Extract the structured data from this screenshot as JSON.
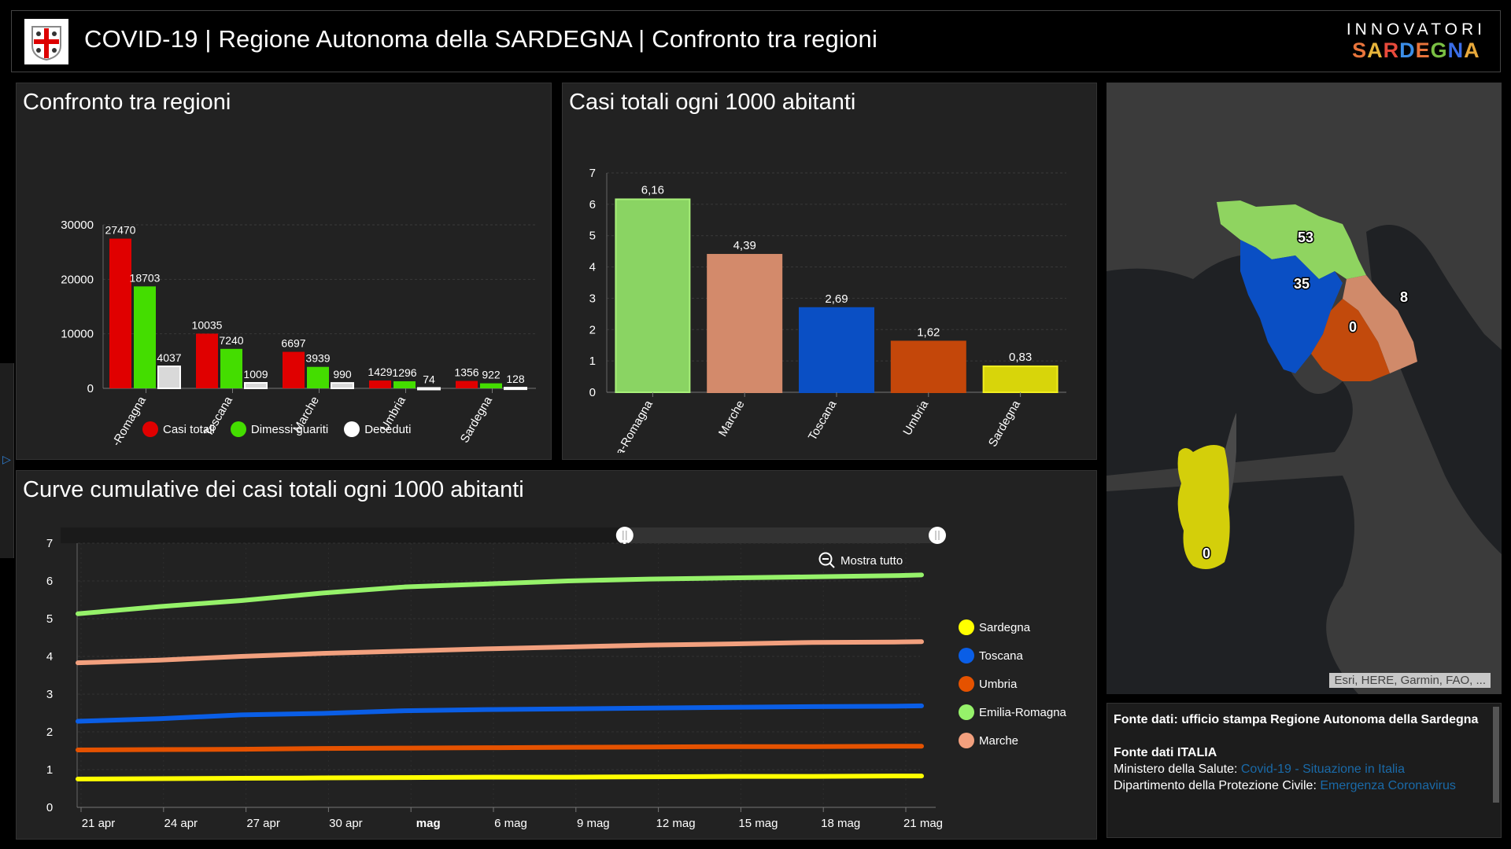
{
  "header": {
    "title": "COVID-19 | Regione Autonoma della SARDEGNA | Confronto tra regioni",
    "brand_top": "INNOVATORI",
    "brand_bottom_letters": [
      "S",
      "A",
      "R",
      "D",
      "E",
      "G",
      "N",
      "A"
    ],
    "brand_bottom_colors": [
      "#e8743b",
      "#e8b53b",
      "#e84a3b",
      "#3b8ee8",
      "#e8743b",
      "#7ac043",
      "#3b6ee8",
      "#e8a93b"
    ]
  },
  "panel_bars": {
    "title": "Confronto tra regioni",
    "legend": [
      {
        "label": "Casi totali",
        "color": "#e00000"
      },
      {
        "label": "Dimessi guariti",
        "color": "#44dd00"
      },
      {
        "label": "Deceduti",
        "color": "#ffffff"
      }
    ]
  },
  "panel_rate": {
    "title": "Casi totali ogni 1000 abitanti"
  },
  "panel_lines": {
    "title": "Curve cumulative dei casi totali ogni 1000 abitanti",
    "reset_zoom_label": "Mostra tutto",
    "legend": [
      {
        "label": "Sardegna",
        "color": "#ffff00"
      },
      {
        "label": "Toscana",
        "color": "#0a5ee6"
      },
      {
        "label": "Umbria",
        "color": "#e55200"
      },
      {
        "label": "Emilia-Romagna",
        "color": "#96f26a"
      },
      {
        "label": "Marche",
        "color": "#f2a07e"
      }
    ]
  },
  "map": {
    "attribution": "Esri, HERE, Garmin, FAO, ...",
    "labels": [
      {
        "region": "Emilia-Romagna",
        "value": "53",
        "color": "#8fd460"
      },
      {
        "region": "Toscana",
        "value": "35",
        "color": "#0a4fc4"
      },
      {
        "region": "Marche",
        "value": "8",
        "color": "#d08a6a"
      },
      {
        "region": "Umbria",
        "value": "0",
        "color": "#c24a0c"
      },
      {
        "region": "Sardegna",
        "value": "0",
        "color": "#d4cf0a"
      }
    ]
  },
  "sources": {
    "line1_bold": "Fonte dati: ufficio stampa Regione Autonoma della Sardegna",
    "line2_bold": "Fonte dati ITALIA",
    "ministero_label": "Ministero della Salute: ",
    "ministero_link": "Covid-19 - Situazione in Italia",
    "protezione_label": "Dipartimento della Protezione Civile: ",
    "protezione_link": "Emergenza Coronavirus"
  },
  "chart_data": [
    {
      "type": "bar",
      "title": "Confronto tra regioni",
      "categories": [
        "Emilia-Romagna",
        "Toscana",
        "Marche",
        "Umbria",
        "Sardegna"
      ],
      "series": [
        {
          "name": "Casi totali",
          "color": "#e00000",
          "values": [
            27470,
            10035,
            6697,
            1429,
            1356
          ]
        },
        {
          "name": "Dimessi guariti",
          "color": "#44dd00",
          "values": [
            18703,
            7240,
            3939,
            1296,
            922
          ]
        },
        {
          "name": "Deceduti",
          "color": "#d9d9d9",
          "values": [
            4037,
            1009,
            990,
            74,
            128
          ]
        }
      ],
      "yticks": [
        0,
        10000,
        20000,
        30000
      ],
      "ylim": [
        0,
        30000
      ],
      "legend": "bottom",
      "grid": true
    },
    {
      "type": "bar",
      "title": "Casi totali ogni 1000 abitanti",
      "categories": [
        "Emilia-Romagna",
        "Marche",
        "Toscana",
        "Umbria",
        "Sardegna"
      ],
      "values": [
        6.16,
        4.39,
        2.69,
        1.62,
        0.83
      ],
      "value_labels": [
        "6,16",
        "4,39",
        "2,69",
        "1,62",
        "0,83"
      ],
      "colors": [
        "#8ad463",
        "#d38a6b",
        "#0a4fc4",
        "#c4470a",
        "#d8d50a"
      ],
      "yticks": [
        0,
        1,
        2,
        3,
        4,
        5,
        6,
        7
      ],
      "ylim": [
        0,
        7
      ],
      "grid": true
    },
    {
      "type": "line",
      "title": "Curve cumulative dei casi totali ogni 1000 abitanti",
      "x_ticks": [
        "21 apr",
        "24 apr",
        "27 apr",
        "30 apr",
        "mag",
        "6 mag",
        "9 mag",
        "12 mag",
        "15 mag",
        "18 mag",
        "21 mag"
      ],
      "x_tick_bold": [
        false,
        false,
        false,
        false,
        true,
        false,
        false,
        false,
        false,
        false,
        false
      ],
      "x_range_days": [
        0,
        31
      ],
      "yticks": [
        0,
        1,
        2,
        3,
        4,
        5,
        6,
        7
      ],
      "ylim": [
        0,
        7
      ],
      "legend": "right",
      "grid": true,
      "series": [
        {
          "name": "Emilia-Romagna",
          "color": "#96f26a",
          "x": [
            0,
            3,
            6,
            9,
            12,
            15,
            18,
            21,
            24,
            27,
            30,
            31
          ],
          "y": [
            5.13,
            5.32,
            5.48,
            5.68,
            5.84,
            5.92,
            6.0,
            6.05,
            6.08,
            6.11,
            6.14,
            6.16
          ]
        },
        {
          "name": "Marche",
          "color": "#f2a07e",
          "x": [
            0,
            3,
            6,
            9,
            12,
            15,
            18,
            21,
            24,
            27,
            30,
            31
          ],
          "y": [
            3.83,
            3.9,
            4.0,
            4.08,
            4.14,
            4.2,
            4.25,
            4.3,
            4.33,
            4.37,
            4.38,
            4.39
          ]
        },
        {
          "name": "Toscana",
          "color": "#0a5ee6",
          "x": [
            0,
            3,
            6,
            9,
            12,
            15,
            18,
            21,
            24,
            27,
            30,
            31
          ],
          "y": [
            2.28,
            2.35,
            2.45,
            2.49,
            2.56,
            2.59,
            2.61,
            2.63,
            2.65,
            2.67,
            2.68,
            2.69
          ]
        },
        {
          "name": "Umbria",
          "color": "#e55200",
          "x": [
            0,
            3,
            6,
            9,
            12,
            15,
            18,
            21,
            24,
            27,
            30,
            31
          ],
          "y": [
            1.52,
            1.53,
            1.54,
            1.56,
            1.57,
            1.58,
            1.59,
            1.6,
            1.61,
            1.61,
            1.62,
            1.62
          ]
        },
        {
          "name": "Sardegna",
          "color": "#ffff00",
          "x": [
            0,
            3,
            6,
            9,
            12,
            15,
            18,
            21,
            24,
            27,
            30,
            31
          ],
          "y": [
            0.75,
            0.76,
            0.77,
            0.78,
            0.79,
            0.8,
            0.8,
            0.81,
            0.82,
            0.82,
            0.83,
            0.83
          ]
        }
      ],
      "zoom_slider": {
        "start_fraction": 0.64,
        "end_fraction": 1.0
      }
    }
  ]
}
